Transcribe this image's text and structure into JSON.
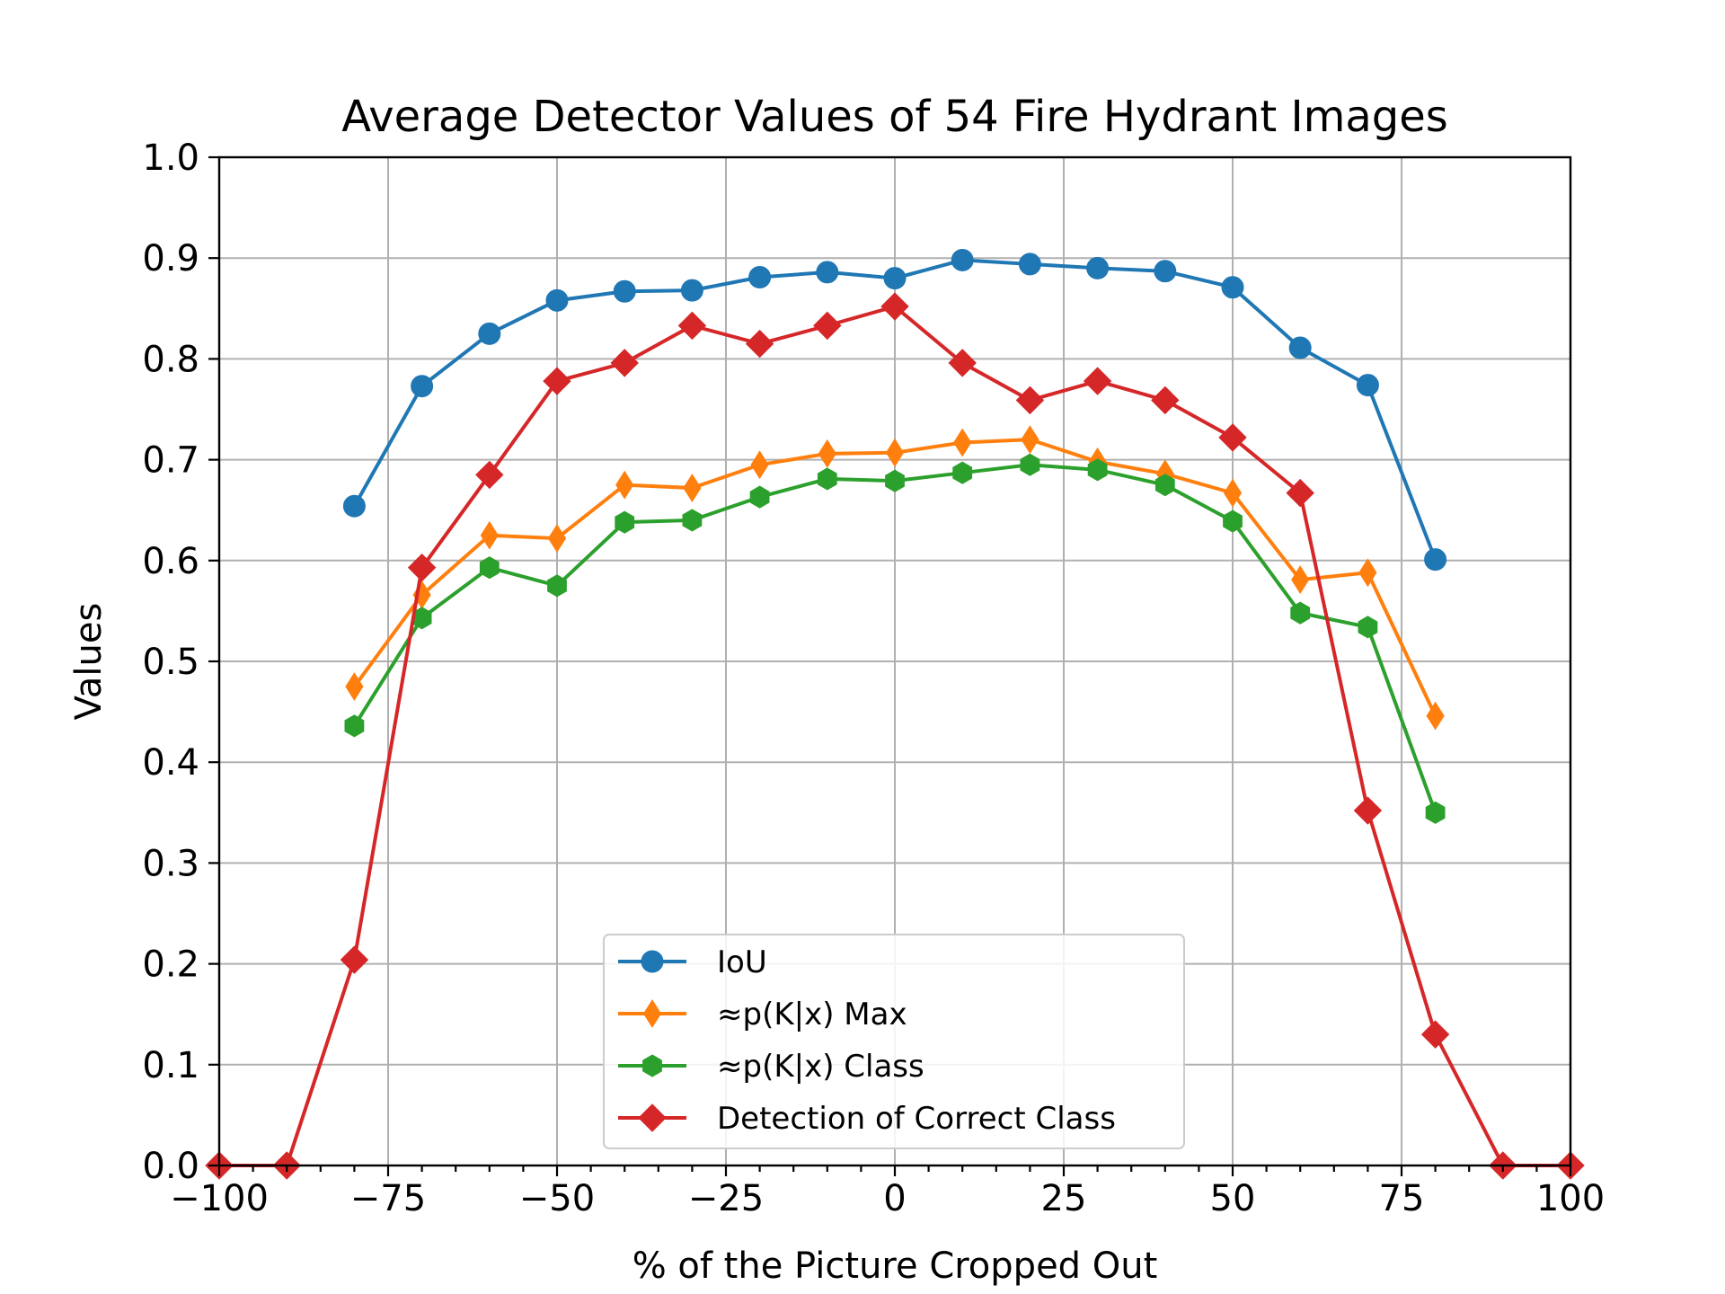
{
  "chart_data": {
    "type": "line",
    "title": "Average Detector Values of 54 Fire Hydrant Images",
    "xlabel": "% of the Picture Cropped Out",
    "ylabel": "Values",
    "xlim": [
      -100,
      100
    ],
    "ylim": [
      0.0,
      1.0
    ],
    "x_ticks": [
      -100,
      -75,
      -50,
      -25,
      0,
      25,
      50,
      75,
      100
    ],
    "x_tick_labels": [
      "−100",
      "−75",
      "−50",
      "−25",
      "0",
      "25",
      "50",
      "75",
      "100"
    ],
    "y_ticks": [
      0.0,
      0.1,
      0.2,
      0.3,
      0.4,
      0.5,
      0.6,
      0.7,
      0.8,
      0.9,
      1.0
    ],
    "y_tick_labels": [
      "0.0",
      "0.1",
      "0.2",
      "0.3",
      "0.4",
      "0.5",
      "0.6",
      "0.7",
      "0.8",
      "0.9",
      "1.0"
    ],
    "grid": true,
    "legend_position": "lower-center",
    "series": [
      {
        "name": "IoU",
        "color": "#1f77b4",
        "marker": "circle",
        "x": [
          -80,
          -70,
          -60,
          -50,
          -40,
          -30,
          -20,
          -10,
          0,
          10,
          20,
          30,
          40,
          50,
          60,
          70,
          80
        ],
        "values": [
          0.654,
          0.773,
          0.825,
          0.858,
          0.867,
          0.868,
          0.881,
          0.886,
          0.88,
          0.898,
          0.894,
          0.89,
          0.887,
          0.871,
          0.811,
          0.774,
          0.601
        ]
      },
      {
        "name": "≈p(K|x) Max",
        "color": "#ff7f0e",
        "marker": "thin-diamond",
        "x": [
          -80,
          -70,
          -60,
          -50,
          -40,
          -30,
          -20,
          -10,
          0,
          10,
          20,
          30,
          40,
          50,
          60,
          70,
          80
        ],
        "values": [
          0.475,
          0.566,
          0.625,
          0.622,
          0.675,
          0.672,
          0.695,
          0.706,
          0.707,
          0.717,
          0.72,
          0.698,
          0.686,
          0.667,
          0.581,
          0.588,
          0.446
        ]
      },
      {
        "name": "≈p(K|x) Class",
        "color": "#2ca02c",
        "marker": "hexagon",
        "x": [
          -80,
          -70,
          -60,
          -50,
          -40,
          -30,
          -20,
          -10,
          0,
          10,
          20,
          30,
          40,
          50,
          60,
          70,
          80
        ],
        "values": [
          0.436,
          0.543,
          0.593,
          0.575,
          0.638,
          0.64,
          0.663,
          0.681,
          0.679,
          0.687,
          0.695,
          0.69,
          0.675,
          0.639,
          0.548,
          0.534,
          0.35
        ]
      },
      {
        "name": "Detection of Correct Class",
        "color": "#d62728",
        "marker": "diamond",
        "x": [
          -100,
          -90,
          -80,
          -70,
          -60,
          -50,
          -40,
          -30,
          -20,
          -10,
          0,
          10,
          20,
          30,
          40,
          50,
          60,
          70,
          80,
          90,
          100
        ],
        "values": [
          0.0,
          0.0,
          0.204,
          0.593,
          0.685,
          0.778,
          0.796,
          0.833,
          0.815,
          0.833,
          0.852,
          0.796,
          0.759,
          0.778,
          0.759,
          0.722,
          0.667,
          0.352,
          0.13,
          0.0,
          0.0
        ]
      }
    ]
  }
}
